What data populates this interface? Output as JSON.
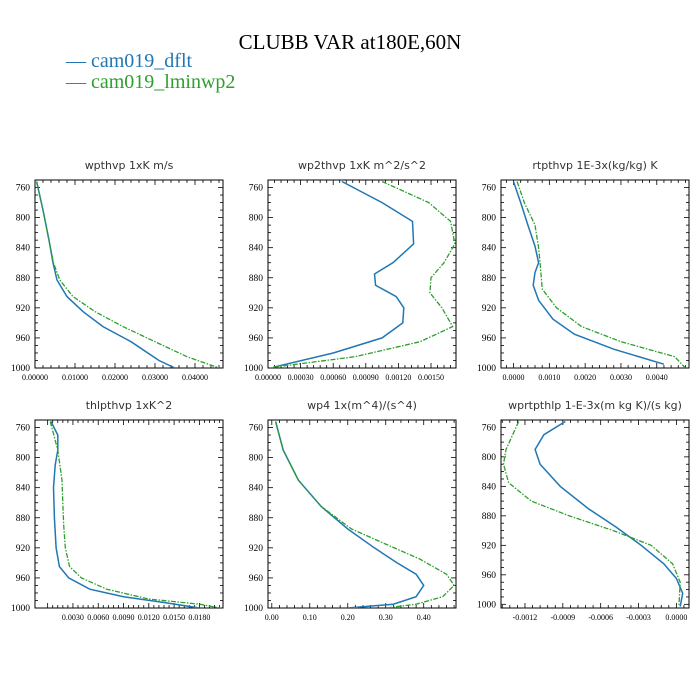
{
  "title": "CLUBB VAR at180E,60N",
  "legend": [
    {
      "label": "— cam019_dflt",
      "color": "#1f77b4"
    },
    {
      "label": "— cam019_lminwp2",
      "color": "#2ca02c"
    }
  ],
  "colors": {
    "dflt": "#1f77b4",
    "lminwp2": "#2ca02c"
  },
  "chart_data": [
    {
      "type": "line",
      "title": "wpthvp  1xK m/s",
      "ylim": [
        1000,
        750
      ],
      "yticks": [
        "760",
        "800",
        "840",
        "880",
        "920",
        "960",
        "1000"
      ],
      "yticks_values": [
        760,
        800,
        840,
        880,
        920,
        960,
        1000
      ],
      "xlim": [
        0,
        0.047
      ],
      "xticks": [
        "0.00000",
        "0.01000",
        "0.02000",
        "0.03000",
        "0.04000"
      ],
      "xticks_values": [
        0,
        0.01,
        0.02,
        0.03,
        0.04
      ],
      "series": [
        {
          "key": "dflt",
          "x": [
            0.0004,
            0.002,
            0.0035,
            0.0045,
            0.0055,
            0.008,
            0.012,
            0.017,
            0.024,
            0.031,
            0.035
          ],
          "y": [
            752,
            790,
            830,
            860,
            883,
            905,
            925,
            945,
            965,
            990,
            1000
          ]
        },
        {
          "key": "lminwp2",
          "dashed": true,
          "x": [
            0.0004,
            0.002,
            0.0035,
            0.0046,
            0.0062,
            0.0095,
            0.015,
            0.022,
            0.03,
            0.038,
            0.046
          ],
          "y": [
            752,
            790,
            830,
            860,
            883,
            905,
            925,
            945,
            965,
            985,
            1000
          ]
        }
      ]
    },
    {
      "type": "line",
      "title": "wp2thvp  1xK m^2/s^2",
      "ylim": [
        1000,
        750
      ],
      "yticks": [
        "760",
        "800",
        "840",
        "880",
        "920",
        "960",
        "1000"
      ],
      "yticks_values": [
        760,
        800,
        840,
        880,
        920,
        960,
        1000
      ],
      "xlim": [
        0,
        0.00173
      ],
      "xticks": [
        "0.00000",
        "0.00030",
        "0.00060",
        "0.00090",
        "0.00120",
        "0.00150"
      ],
      "xticks_values": [
        0,
        0.0003,
        0.0006,
        0.0009,
        0.0012,
        0.0015
      ],
      "series": [
        {
          "key": "dflt",
          "x": [
            0.00068,
            0.00105,
            0.00133,
            0.00134,
            0.00115,
            0.00098,
            0.00099,
            0.00118,
            0.00125,
            0.00124,
            0.00105,
            0.0006,
            5e-05
          ],
          "y": [
            752,
            780,
            805,
            835,
            860,
            875,
            890,
            905,
            920,
            940,
            960,
            980,
            999
          ]
        },
        {
          "key": "lminwp2",
          "dashed": true,
          "x": [
            0.00105,
            0.00148,
            0.00168,
            0.00172,
            0.00162,
            0.0015,
            0.00149,
            0.0016,
            0.0017,
            0.0014,
            0.0008,
            5e-05
          ],
          "y": [
            752,
            780,
            805,
            835,
            860,
            880,
            900,
            920,
            945,
            965,
            985,
            999
          ]
        }
      ]
    },
    {
      "type": "line",
      "title": "rtpthvp  1E-3x(kg/kg) K",
      "ylim": [
        1000,
        750
      ],
      "yticks": [
        "760",
        "800",
        "840",
        "880",
        "920",
        "960",
        "1000"
      ],
      "yticks_values": [
        760,
        800,
        840,
        880,
        920,
        960,
        1000
      ],
      "xlim": [
        -0.00035,
        0.0049
      ],
      "xticks": [
        "0.0000",
        "0.0010",
        "0.0020",
        "0.0030",
        "0.0040"
      ],
      "xticks_values": [
        0,
        0.001,
        0.002,
        0.003,
        0.004
      ],
      "series": [
        {
          "key": "dflt",
          "x": [
            0.0,
            0.0002,
            0.0004,
            0.0006,
            0.0007,
            0.0006,
            0.00055,
            0.0007,
            0.0011,
            0.0017,
            0.0028,
            0.0042
          ],
          "y": [
            752,
            780,
            810,
            838,
            860,
            873,
            890,
            910,
            935,
            955,
            975,
            995
          ]
        },
        {
          "key": "lminwp2",
          "dashed": true,
          "x": [
            0.0001,
            0.0003,
            0.0006,
            0.0007,
            0.00075,
            0.0008,
            0.0012,
            0.0019,
            0.003,
            0.0045,
            0.0048
          ],
          "y": [
            752,
            780,
            810,
            840,
            865,
            895,
            920,
            945,
            965,
            985,
            1000
          ]
        }
      ]
    },
    {
      "type": "line",
      "title": "thlpthvp  1xK^2",
      "ylim": [
        1000,
        750
      ],
      "yticks": [
        "760",
        "800",
        "840",
        "880",
        "920",
        "960",
        "1000"
      ],
      "yticks_values": [
        760,
        800,
        840,
        880,
        920,
        960,
        1000
      ],
      "xlim": [
        -0.0015,
        0.0208
      ],
      "xticks": [
        "0.0030",
        "0.0060",
        "0.0090",
        "0.0120",
        "0.0150",
        "0.0180"
      ],
      "xticks_values": [
        0.003,
        0.006,
        0.009,
        0.012,
        0.015,
        0.018
      ],
      "series": [
        {
          "key": "dflt",
          "x": [
            0.0004,
            0.0012,
            0.0012,
            0.0009,
            0.0007,
            0.0008,
            0.001,
            0.0014,
            0.0025,
            0.005,
            0.009,
            0.014,
            0.018
          ],
          "y": [
            752,
            770,
            790,
            810,
            840,
            880,
            920,
            945,
            960,
            975,
            985,
            993,
            1000
          ]
        },
        {
          "key": "lminwp2",
          "dashed": true,
          "x": [
            0.0003,
            0.0012,
            0.0017,
            0.0018,
            0.0019,
            0.0021,
            0.0026,
            0.004,
            0.007,
            0.012,
            0.018,
            0.0205
          ],
          "y": [
            752,
            790,
            830,
            860,
            890,
            920,
            945,
            960,
            975,
            988,
            995,
            1000
          ]
        }
      ]
    },
    {
      "type": "line",
      "title": "wp4  1x(m^4)/(s^4)",
      "ylim": [
        1000,
        750
      ],
      "yticks": [
        "760",
        "800",
        "840",
        "880",
        "920",
        "960",
        "1000"
      ],
      "yticks_values": [
        760,
        800,
        840,
        880,
        920,
        960,
        1000
      ],
      "xlim": [
        -0.01,
        0.485
      ],
      "xticks": [
        "0.00",
        "0.10",
        "0.20",
        "0.30",
        "0.40"
      ],
      "xticks_values": [
        0,
        0.1,
        0.2,
        0.3,
        0.4
      ],
      "series": [
        {
          "key": "dflt",
          "x": [
            0.01,
            0.03,
            0.07,
            0.13,
            0.2,
            0.27,
            0.33,
            0.38,
            0.4,
            0.38,
            0.32,
            0.2
          ],
          "y": [
            752,
            790,
            830,
            865,
            895,
            920,
            940,
            955,
            970,
            985,
            995,
            1000
          ]
        },
        {
          "key": "lminwp2",
          "dashed": true,
          "x": [
            0.01,
            0.03,
            0.07,
            0.13,
            0.21,
            0.3,
            0.39,
            0.46,
            0.48,
            0.45,
            0.38,
            0.3
          ],
          "y": [
            752,
            790,
            830,
            865,
            895,
            915,
            935,
            955,
            970,
            985,
            995,
            1000
          ]
        }
      ]
    },
    {
      "type": "line",
      "title": "wprtpthlp  1-E-3x(m kg K)/(s kg)",
      "ylim": [
        1005,
        750
      ],
      "yticks": [
        "760",
        "800",
        "840",
        "880",
        "920",
        "960",
        "1000"
      ],
      "yticks_values": [
        760,
        800,
        840,
        880,
        920,
        960,
        1000
      ],
      "xlim": [
        -0.00139,
        0.0001
      ],
      "xticks": [
        "-0.0012",
        "-0.0009",
        "-0.0006",
        "-0.0003",
        "0.0000"
      ],
      "xticks_values": [
        -0.0012,
        -0.0009,
        -0.0006,
        -0.0003,
        0
      ],
      "series": [
        {
          "key": "dflt",
          "x": [
            -0.00088,
            -0.00105,
            -0.00112,
            -0.00108,
            -0.00092,
            -0.0007,
            -0.00048,
            -0.00028,
            -0.0001,
            0.0,
            5e-05,
            3e-05
          ],
          "y": [
            752,
            770,
            790,
            810,
            840,
            870,
            895,
            920,
            945,
            965,
            985,
            1003
          ]
        },
        {
          "key": "lminwp2",
          "dashed": true,
          "x": [
            -0.00125,
            -0.00135,
            -0.00137,
            -0.00133,
            -0.00115,
            -0.00085,
            -0.0005,
            -0.0002,
            -3e-05,
            3e-05,
            2e-05
          ],
          "y": [
            752,
            790,
            810,
            835,
            860,
            880,
            900,
            920,
            945,
            970,
            1003
          ]
        }
      ]
    }
  ]
}
